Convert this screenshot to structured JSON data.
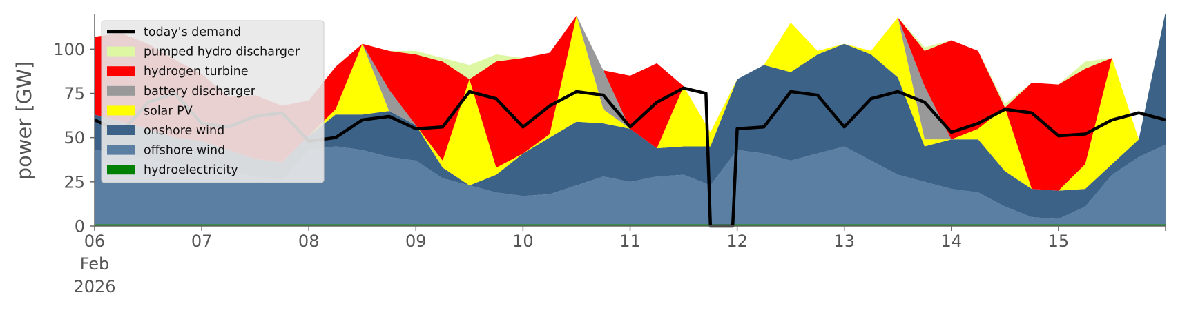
{
  "chart_data": {
    "type": "area",
    "ylabel": "power [GW]",
    "ylim": [
      0,
      120
    ],
    "yticks": [
      0,
      25,
      50,
      75,
      100
    ],
    "grid": false,
    "legend_placement": "top-left",
    "x_range": [
      "2026-02-06T00:00",
      "2026-02-16T00:00"
    ],
    "x_tick_labels": [
      {
        "date": "2026-02-06",
        "lines": [
          "06",
          "Feb",
          "2026"
        ]
      },
      {
        "date": "2026-02-07",
        "lines": [
          "07"
        ]
      },
      {
        "date": "2026-02-08",
        "lines": [
          "08"
        ]
      },
      {
        "date": "2026-02-09",
        "lines": [
          "09"
        ]
      },
      {
        "date": "2026-02-10",
        "lines": [
          "10"
        ]
      },
      {
        "date": "2026-02-11",
        "lines": [
          "11"
        ]
      },
      {
        "date": "2026-02-12",
        "lines": [
          "12"
        ]
      },
      {
        "date": "2026-02-13",
        "lines": [
          "13"
        ]
      },
      {
        "date": "2026-02-14",
        "lines": [
          "14"
        ]
      },
      {
        "date": "2026-02-15",
        "lines": [
          "15"
        ]
      }
    ],
    "x": [
      "2026-02-06T00:00",
      "2026-02-06T06:00",
      "2026-02-06T12:00",
      "2026-02-06T18:00",
      "2026-02-07T00:00",
      "2026-02-07T06:00",
      "2026-02-07T12:00",
      "2026-02-07T18:00",
      "2026-02-08T00:00",
      "2026-02-08T06:00",
      "2026-02-08T12:00",
      "2026-02-08T18:00",
      "2026-02-09T00:00",
      "2026-02-09T06:00",
      "2026-02-09T12:00",
      "2026-02-09T18:00",
      "2026-02-10T00:00",
      "2026-02-10T06:00",
      "2026-02-10T12:00",
      "2026-02-10T18:00",
      "2026-02-11T00:00",
      "2026-02-11T06:00",
      "2026-02-11T12:00",
      "2026-02-11T18:00",
      "2026-02-12T00:00",
      "2026-02-12T06:00",
      "2026-02-12T12:00",
      "2026-02-12T18:00",
      "2026-02-13T00:00",
      "2026-02-13T06:00",
      "2026-02-13T12:00",
      "2026-02-13T18:00",
      "2026-02-14T00:00",
      "2026-02-14T06:00",
      "2026-02-14T12:00",
      "2026-02-14T18:00",
      "2026-02-15T00:00",
      "2026-02-15T06:00",
      "2026-02-15T12:00",
      "2026-02-15T18:00",
      "2026-02-16T00:00"
    ],
    "stack_series": [
      {
        "name": "hydroelectricity",
        "color": "#008000",
        "values": [
          1,
          1,
          1,
          1,
          1,
          1,
          1,
          1,
          1,
          1,
          1,
          1,
          1,
          1,
          1,
          1,
          1,
          1,
          1,
          1,
          1,
          1,
          1,
          1,
          1,
          1,
          1,
          1,
          1,
          1,
          1,
          1,
          1,
          1,
          1,
          1,
          1,
          1,
          1,
          1,
          1
        ]
      },
      {
        "name": "offshore wind",
        "color": "#5b7fa3",
        "values": [
          42,
          40,
          37,
          34,
          33,
          30,
          27,
          25,
          42,
          44,
          42,
          38,
          36,
          26,
          22,
          18,
          16,
          17,
          22,
          27,
          24,
          27,
          28,
          22,
          42,
          40,
          36,
          40,
          44,
          36,
          28,
          24,
          20,
          18,
          10,
          4,
          3,
          10,
          28,
          38,
          45
        ]
      },
      {
        "name": "onshore wind",
        "color": "#3c6387",
        "values": [
          20,
          18,
          17,
          15,
          14,
          12,
          10,
          10,
          8,
          18,
          20,
          26,
          20,
          6,
          0,
          10,
          24,
          32,
          36,
          30,
          30,
          16,
          16,
          22,
          40,
          50,
          50,
          56,
          58,
          60,
          55,
          20,
          28,
          30,
          20,
          16,
          16,
          10,
          6,
          10,
          75
        ]
      },
      {
        "name": "solar PV",
        "color": "#ffff00",
        "values": [
          0,
          0,
          0,
          0,
          0,
          0,
          0,
          0,
          0,
          3,
          40,
          0,
          0,
          4,
          60,
          4,
          0,
          2,
          60,
          8,
          0,
          0,
          34,
          8,
          0,
          0,
          28,
          2,
          0,
          2,
          34,
          4,
          0,
          6,
          36,
          0,
          0,
          14,
          60,
          0,
          0
        ]
      },
      {
        "name": "battery discharger",
        "color": "#999999",
        "values": [
          0,
          0,
          0,
          0,
          0,
          0,
          0,
          0,
          0,
          0,
          0,
          12,
          0,
          0,
          0,
          0,
          0,
          0,
          0,
          22,
          0,
          0,
          0,
          0,
          0,
          0,
          0,
          0,
          0,
          0,
          0,
          30,
          0,
          0,
          0,
          0,
          0,
          0,
          0,
          0,
          0
        ]
      },
      {
        "name": "hydrogen turbine",
        "color": "#ff0000",
        "values": [
          44,
          50,
          48,
          44,
          38,
          30,
          36,
          32,
          20,
          24,
          0,
          22,
          40,
          56,
          0,
          60,
          54,
          46,
          0,
          0,
          30,
          48,
          0,
          0,
          0,
          0,
          0,
          0,
          0,
          0,
          0,
          20,
          56,
          44,
          0,
          60,
          60,
          54,
          0,
          0,
          0
        ]
      },
      {
        "name": "pumped hydro discharger",
        "color": "#ddf7a3",
        "values": [
          0,
          0,
          0,
          0,
          0,
          0,
          0,
          0,
          0,
          0,
          0,
          0,
          2,
          2,
          8,
          4,
          0,
          0,
          0,
          0,
          0,
          0,
          0,
          0,
          0,
          0,
          0,
          0,
          0,
          0,
          0,
          2,
          0,
          0,
          2,
          0,
          0,
          4,
          0,
          0,
          0
        ]
      }
    ],
    "line_series": {
      "name": "today's demand",
      "color": "#000000",
      "x": [
        "2026-02-06T00:00",
        "2026-02-06T06:00",
        "2026-02-06T12:00",
        "2026-02-06T18:00",
        "2026-02-07T00:00",
        "2026-02-07T06:00",
        "2026-02-07T12:00",
        "2026-02-07T18:00",
        "2026-02-08T00:00",
        "2026-02-08T06:00",
        "2026-02-08T12:00",
        "2026-02-08T18:00",
        "2026-02-09T00:00",
        "2026-02-09T06:00",
        "2026-02-09T12:00",
        "2026-02-09T18:00",
        "2026-02-10T00:00",
        "2026-02-10T06:00",
        "2026-02-10T12:00",
        "2026-02-10T18:00",
        "2026-02-11T00:00",
        "2026-02-11T06:00",
        "2026-02-11T12:00",
        "2026-02-11T17:00",
        "2026-02-11T18:00",
        "2026-02-11T23:00",
        "2026-02-12T00:00",
        "2026-02-12T06:00",
        "2026-02-12T12:00",
        "2026-02-12T18:00",
        "2026-02-13T00:00",
        "2026-02-13T06:00",
        "2026-02-13T12:00",
        "2026-02-13T18:00",
        "2026-02-14T00:00",
        "2026-02-14T06:00",
        "2026-02-14T12:00",
        "2026-02-14T18:00",
        "2026-02-15T00:00",
        "2026-02-15T06:00",
        "2026-02-15T12:00",
        "2026-02-15T18:00",
        "2026-02-16T00:00"
      ],
      "values": [
        60,
        53,
        70,
        75,
        58,
        56,
        62,
        64,
        48,
        50,
        60,
        62,
        55,
        56,
        76,
        72,
        56,
        68,
        76,
        74,
        56,
        70,
        78,
        75,
        0,
        0,
        55,
        56,
        76,
        74,
        56,
        72,
        76,
        70,
        53,
        58,
        66,
        64,
        51,
        52,
        60,
        64,
        60
      ]
    }
  }
}
